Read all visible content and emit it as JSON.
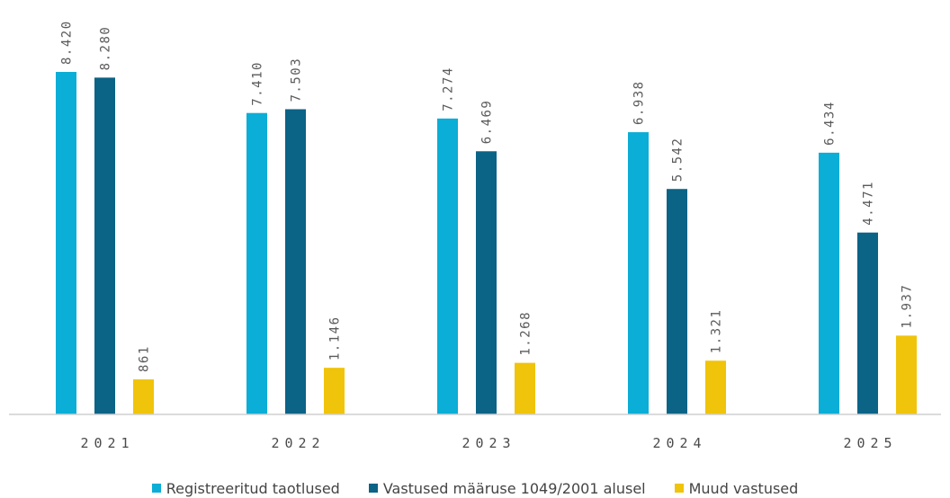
{
  "chart_data": {
    "type": "bar",
    "categories": [
      "2021",
      "2022",
      "2023",
      "2024",
      "2025"
    ],
    "series": [
      {
        "name": "Registreeritud taotlused",
        "color": "#0aaed6",
        "values": [
          8420,
          7410,
          7274,
          6938,
          6434
        ],
        "labels": [
          "8.420",
          "7.410",
          "7.274",
          "6.938",
          "6.434"
        ]
      },
      {
        "name": "Vastused määruse 1049/2001 alusel",
        "color": "#0b6386",
        "values": [
          8280,
          7503,
          6469,
          5542,
          4471
        ],
        "labels": [
          "8.280",
          "7.503",
          "6.469",
          "5.542",
          "4.471"
        ]
      },
      {
        "name": "Muud vastused",
        "color": "#f0c40a",
        "values": [
          861,
          1146,
          1268,
          1321,
          1937
        ],
        "labels": [
          "861",
          "1.146",
          "1.268",
          "1.321",
          "1.937"
        ]
      }
    ],
    "ylim": [
      0,
      8420
    ],
    "grid": false,
    "legend": "bottom"
  }
}
